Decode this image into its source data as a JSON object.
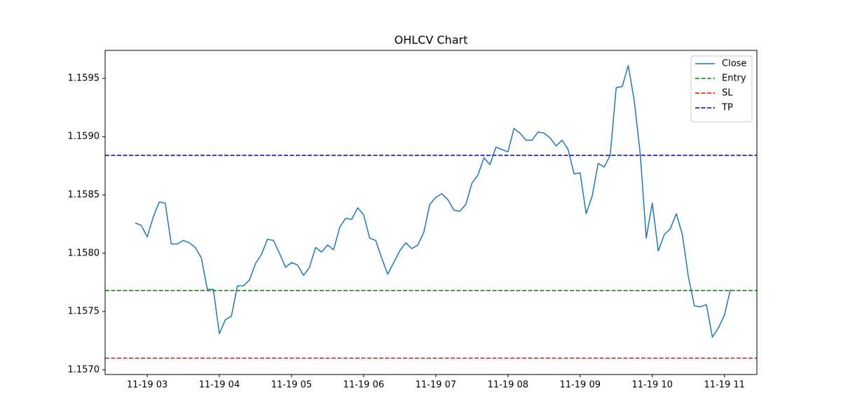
{
  "chart_data": {
    "type": "line",
    "title": "OHLCV Chart",
    "x": [
      "11-19 02:50",
      "11-19 02:55",
      "11-19 03:00",
      "11-19 03:05",
      "11-19 03:10",
      "11-19 03:15",
      "11-19 03:20",
      "11-19 03:25",
      "11-19 03:30",
      "11-19 03:35",
      "11-19 03:40",
      "11-19 03:45",
      "11-19 03:50",
      "11-19 03:55",
      "11-19 04:00",
      "11-19 04:05",
      "11-19 04:10",
      "11-19 04:15",
      "11-19 04:20",
      "11-19 04:25",
      "11-19 04:30",
      "11-19 04:35",
      "11-19 04:40",
      "11-19 04:45",
      "11-19 04:50",
      "11-19 04:55",
      "11-19 05:00",
      "11-19 05:05",
      "11-19 05:10",
      "11-19 05:15",
      "11-19 05:20",
      "11-19 05:25",
      "11-19 05:30",
      "11-19 05:35",
      "11-19 05:40",
      "11-19 05:45",
      "11-19 05:50",
      "11-19 05:55",
      "11-19 06:00",
      "11-19 06:05",
      "11-19 06:10",
      "11-19 06:15",
      "11-19 06:20",
      "11-19 06:25",
      "11-19 06:30",
      "11-19 06:35",
      "11-19 06:40",
      "11-19 06:45",
      "11-19 06:50",
      "11-19 06:55",
      "11-19 07:00",
      "11-19 07:05",
      "11-19 07:10",
      "11-19 07:15",
      "11-19 07:20",
      "11-19 07:25",
      "11-19 07:30",
      "11-19 07:35",
      "11-19 07:40",
      "11-19 07:45",
      "11-19 07:50",
      "11-19 07:55",
      "11-19 08:00",
      "11-19 08:05",
      "11-19 08:10",
      "11-19 08:15",
      "11-19 08:20",
      "11-19 08:25",
      "11-19 08:30",
      "11-19 08:35",
      "11-19 08:40",
      "11-19 08:45",
      "11-19 08:50",
      "11-19 08:55",
      "11-19 09:00",
      "11-19 09:05",
      "11-19 09:10",
      "11-19 09:15",
      "11-19 09:20",
      "11-19 09:25",
      "11-19 09:30",
      "11-19 09:35",
      "11-19 09:40",
      "11-19 09:45",
      "11-19 09:50",
      "11-19 09:55",
      "11-19 10:00",
      "11-19 10:05",
      "11-19 10:10",
      "11-19 10:15",
      "11-19 10:20",
      "11-19 10:25",
      "11-19 10:30",
      "11-19 10:35",
      "11-19 10:40",
      "11-19 10:45",
      "11-19 10:50",
      "11-19 10:55",
      "11-19 11:00",
      "11-19 11:05"
    ],
    "series": [
      {
        "name": "Close",
        "color": "#1f77b4",
        "values": [
          1.15826,
          1.15824,
          1.15814,
          1.15831,
          1.15844,
          1.15843,
          1.15808,
          1.15808,
          1.15811,
          1.15809,
          1.15805,
          1.15796,
          1.15769,
          1.15769,
          1.15731,
          1.15743,
          1.15746,
          1.15772,
          1.15772,
          1.15777,
          1.15791,
          1.15799,
          1.15812,
          1.15811,
          1.158,
          1.15788,
          1.15792,
          1.1579,
          1.15781,
          1.15788,
          1.15805,
          1.15801,
          1.15807,
          1.15803,
          1.15822,
          1.1583,
          1.15829,
          1.15839,
          1.15833,
          1.15813,
          1.15811,
          1.15796,
          1.15782,
          1.15792,
          1.15802,
          1.15809,
          1.15804,
          1.15807,
          1.15818,
          1.15842,
          1.15848,
          1.15851,
          1.15846,
          1.15837,
          1.15836,
          1.15842,
          1.1586,
          1.15867,
          1.15882,
          1.15876,
          1.15891,
          1.15889,
          1.15887,
          1.15907,
          1.15903,
          1.15897,
          1.15897,
          1.15904,
          1.15903,
          1.15899,
          1.15892,
          1.15897,
          1.15889,
          1.15868,
          1.15869,
          1.15834,
          1.15849,
          1.15877,
          1.15874,
          1.15884,
          1.15942,
          1.15943,
          1.15961,
          1.15931,
          1.15885,
          1.15813,
          1.15843,
          1.15802,
          1.15816,
          1.15821,
          1.15834,
          1.15816,
          1.1578,
          1.15755,
          1.15754,
          1.15756,
          1.15728,
          1.15736,
          1.15747,
          1.15769
        ]
      }
    ],
    "hlines": [
      {
        "name": "Entry",
        "color": "#008000",
        "value": 1.15768
      },
      {
        "name": "SL",
        "color": "#ff0000",
        "value": 1.1571
      },
      {
        "name": "TP",
        "color": "#0000cc",
        "value": 1.15884
      }
    ],
    "xlim": [
      "11-19 02:25",
      "11-19 11:27"
    ],
    "xticks": [
      {
        "value": "11-19 03:00",
        "label": "11-19 03"
      },
      {
        "value": "11-19 04:00",
        "label": "11-19 04"
      },
      {
        "value": "11-19 05:00",
        "label": "11-19 05"
      },
      {
        "value": "11-19 06:00",
        "label": "11-19 06"
      },
      {
        "value": "11-19 07:00",
        "label": "11-19 07"
      },
      {
        "value": "11-19 08:00",
        "label": "11-19 08"
      },
      {
        "value": "11-19 09:00",
        "label": "11-19 09"
      },
      {
        "value": "11-19 10:00",
        "label": "11-19 10"
      },
      {
        "value": "11-19 11:00",
        "label": "11-19 11"
      }
    ],
    "ylim": [
      1.15696,
      1.15974
    ],
    "yticks": [
      {
        "value": 1.157,
        "label": "1.1570"
      },
      1.1575,
      {
        "value": 1.158,
        "label": "1.1580"
      },
      1.1585,
      {
        "value": 1.159,
        "label": "1.1590"
      },
      1.1595
    ],
    "legend": "upper right"
  }
}
